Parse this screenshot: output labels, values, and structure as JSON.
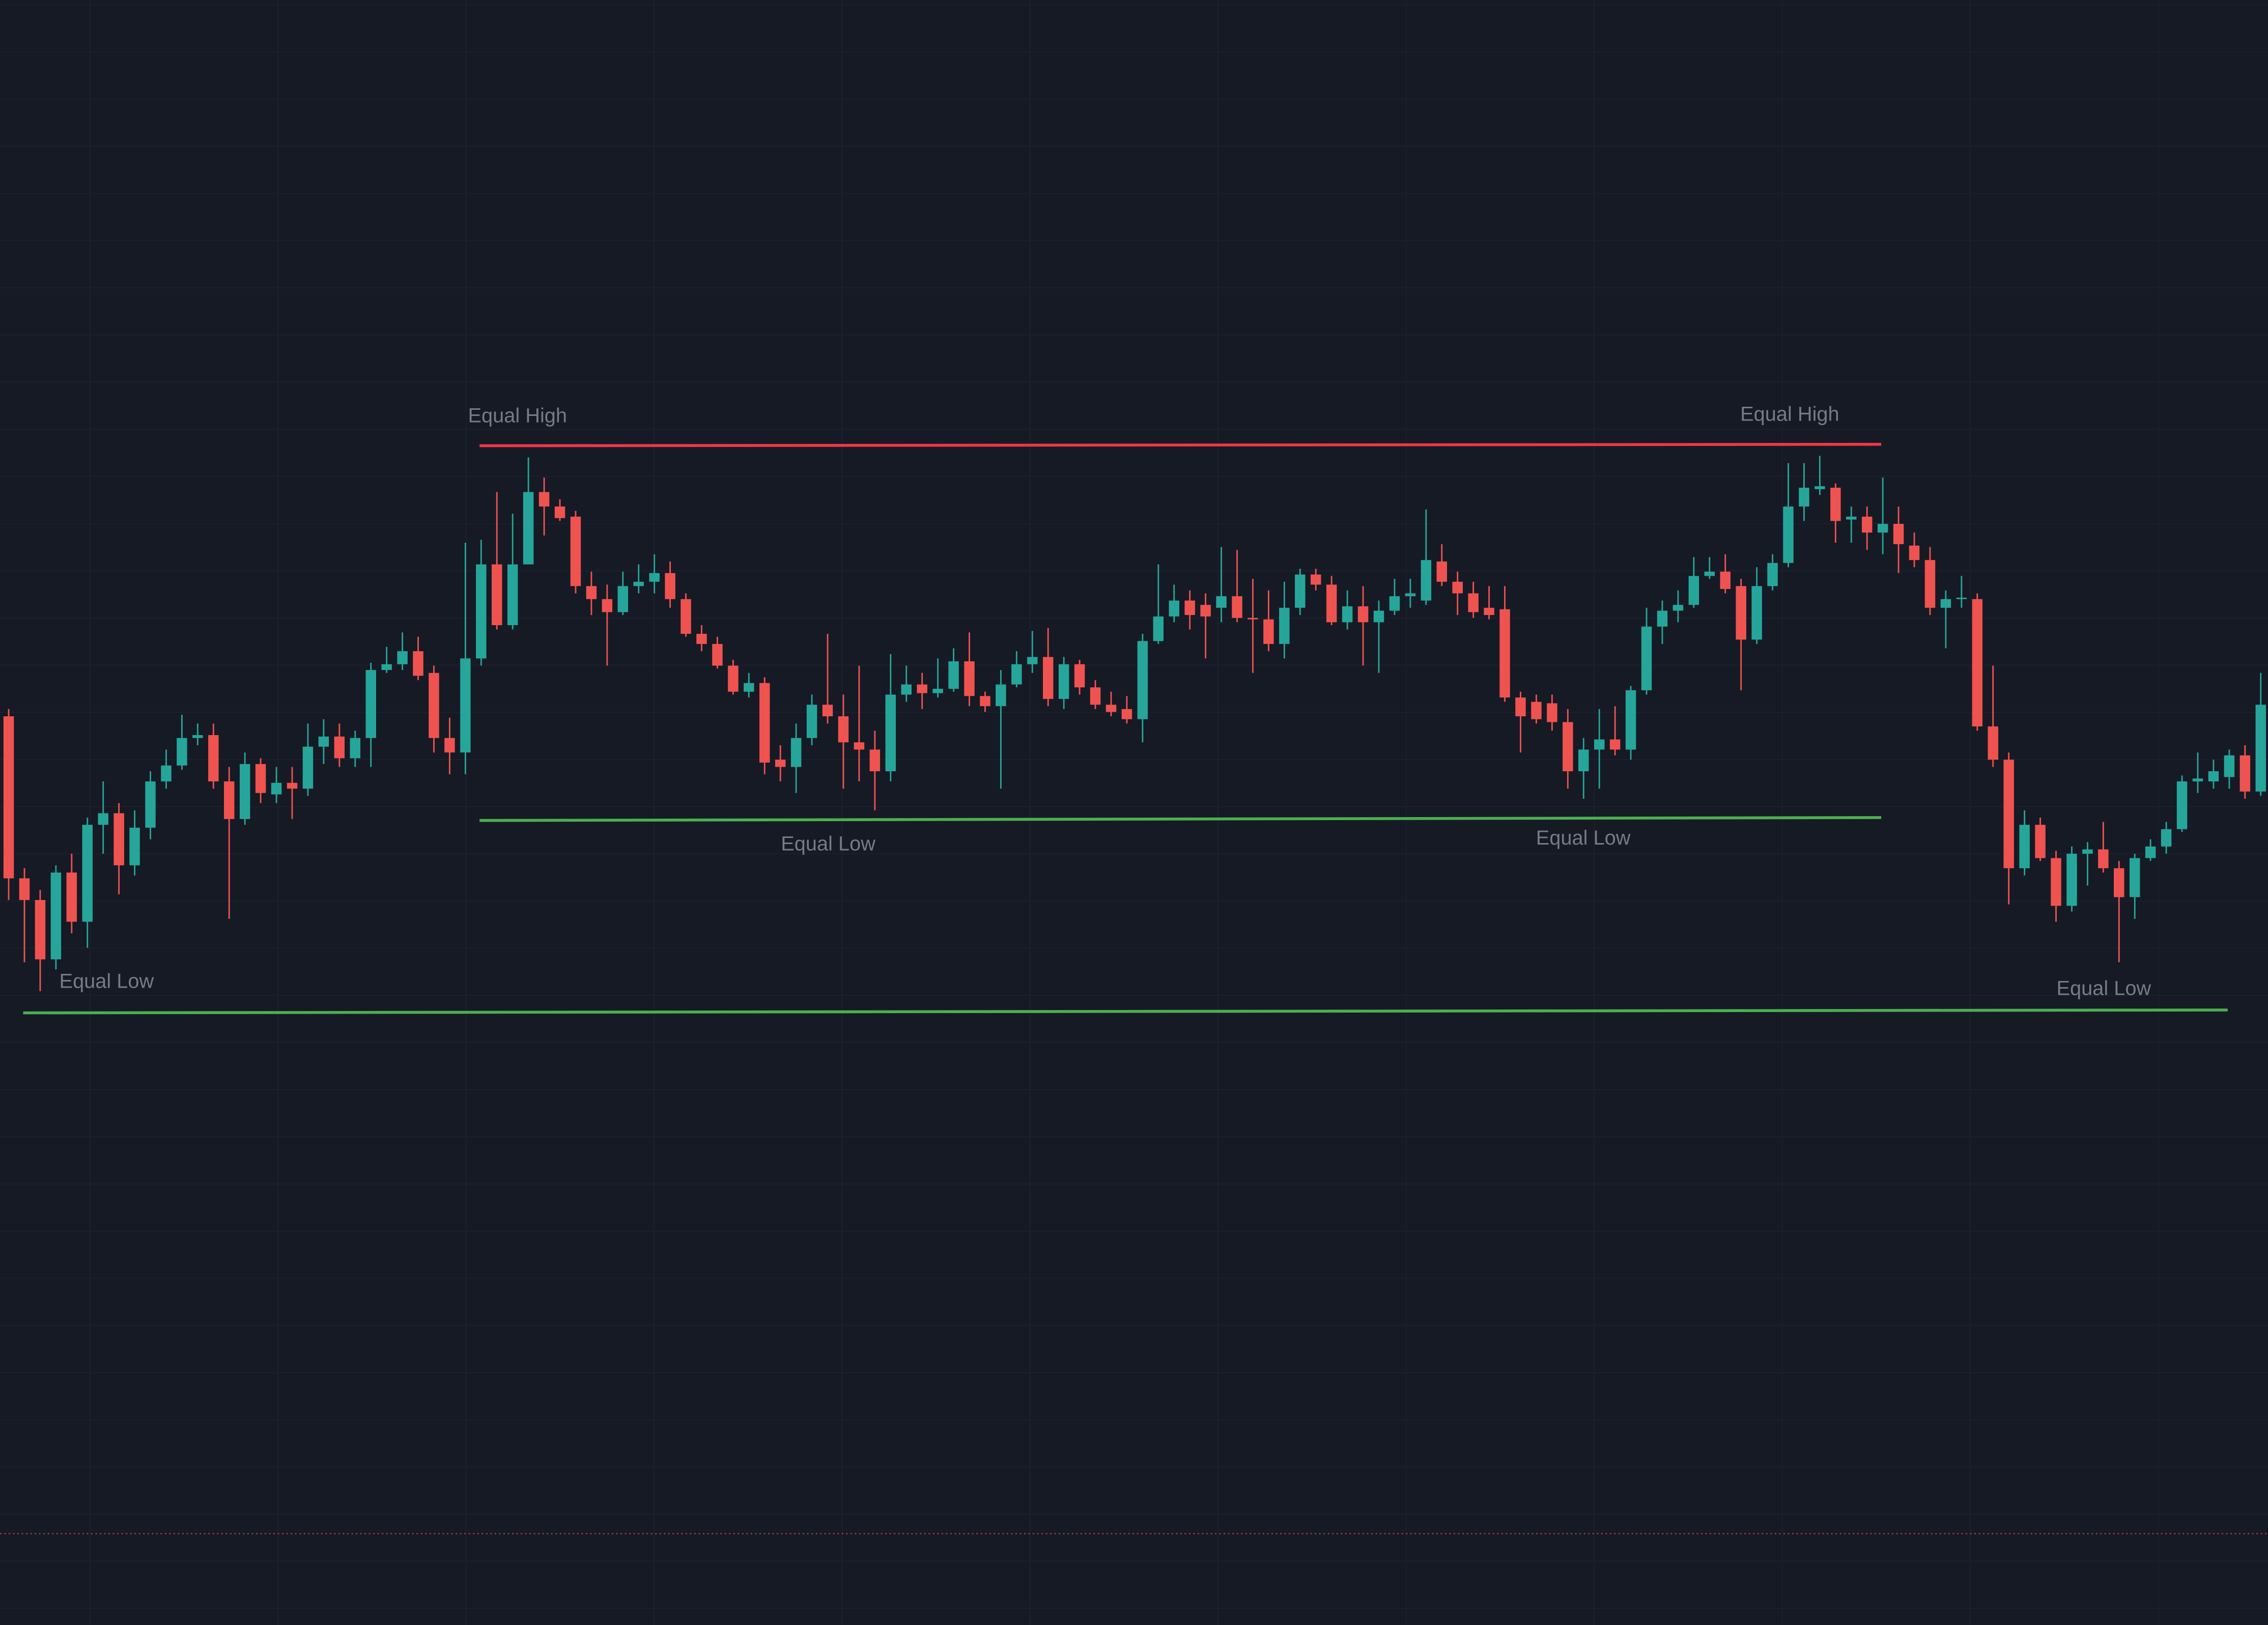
{
  "chart_data": {
    "type": "candlestick",
    "up_color": "#26a69a",
    "down_color": "#ef5350",
    "xlim": [
      -0.551,
      143.46
    ],
    "ylim": [
      77,
      1200
    ],
    "grid": true,
    "open": [
      705,
      593,
      578,
      537,
      597,
      563,
      630,
      638,
      602,
      628,
      660,
      671,
      690,
      692,
      660,
      634,
      672,
      651,
      659,
      655,
      684,
      691,
      676,
      690,
      737,
      741,
      750,
      735,
      690,
      680,
      745,
      810,
      768,
      810,
      860,
      850,
      843,
      795,
      786,
      777,
      795,
      798,
      804,
      786,
      762,
      755,
      740,
      722,
      728,
      675,
      670,
      690,
      713,
      705,
      687,
      682,
      667,
      720,
      727,
      721,
      724,
      743,
      719,
      712,
      727,
      741,
      746,
      717,
      741,
      725,
      713,
      710,
      703,
      757,
      774,
      785,
      782,
      780,
      788,
      773,
      772,
      755,
      780,
      803,
      796,
      770,
      781,
      770,
      778,
      788,
      785,
      812,
      798,
      790,
      780,
      779,
      718,
      715,
      714,
      701,
      667,
      682,
      689,
      682,
      723,
      767,
      778,
      782,
      802,
      805,
      795,
      758,
      795,
      811,
      850,
      862,
      863,
      841,
      843,
      832,
      838,
      823,
      813,
      780,
      786,
      786,
      698,
      675,
      600,
      630,
      607,
      574,
      610,
      613,
      600,
      580,
      607,
      615,
      627,
      660,
      660,
      663,
      678,
      653
    ],
    "high": [
      710,
      600,
      585,
      602,
      610,
      635,
      660,
      645,
      640,
      667,
      682,
      706,
      700,
      700,
      670,
      680,
      676,
      670,
      670,
      700,
      703,
      700,
      695,
      742,
      753,
      763,
      760,
      740,
      704,
      825,
      827,
      860,
      845,
      884,
      870,
      855,
      847,
      805,
      796,
      805,
      810,
      817,
      812,
      790,
      768,
      760,
      744,
      735,
      732,
      685,
      700,
      720,
      762,
      720,
      740,
      695,
      748,
      740,
      735,
      745,
      752,
      763,
      722,
      737,
      750,
      764,
      766,
      746,
      744,
      730,
      722,
      719,
      762,
      810,
      796,
      792,
      790,
      822,
      820,
      800,
      792,
      798,
      807,
      807,
      802,
      792,
      795,
      785,
      800,
      800,
      848,
      824,
      805,
      798,
      795,
      795,
      722,
      720,
      720,
      710,
      690,
      710,
      712,
      726,
      780,
      785,
      792,
      815,
      815,
      817,
      800,
      808,
      817,
      880,
      880,
      885,
      866,
      850,
      850,
      870,
      850,
      832,
      822,
      792,
      802,
      790,
      740,
      680,
      640,
      635,
      612,
      615,
      618,
      632,
      605,
      610,
      620,
      632,
      664,
      680,
      675,
      682,
      685,
      735
    ],
    "low": [
      578,
      535,
      515,
      530,
      555,
      545,
      610,
      582,
      595,
      620,
      655,
      668,
      685,
      655,
      565,
      630,
      645,
      645,
      634,
      650,
      672,
      670,
      670,
      670,
      735,
      737,
      730,
      680,
      665,
      665,
      740,
      765,
      765,
      810,
      830,
      840,
      790,
      775,
      740,
      775,
      790,
      790,
      780,
      760,
      750,
      738,
      720,
      718,
      665,
      660,
      652,
      685,
      700,
      655,
      660,
      640,
      660,
      715,
      710,
      718,
      722,
      712,
      708,
      655,
      725,
      735,
      712,
      710,
      720,
      710,
      705,
      700,
      687,
      755,
      770,
      765,
      745,
      770,
      770,
      735,
      750,
      745,
      775,
      792,
      768,
      765,
      740,
      735,
      775,
      780,
      782,
      795,
      775,
      773,
      772,
      715,
      680,
      700,
      695,
      655,
      648,
      655,
      678,
      675,
      720,
      755,
      770,
      780,
      800,
      790,
      723,
      755,
      792,
      808,
      840,
      858,
      825,
      825,
      820,
      817,
      804,
      808,
      775,
      752,
      780,
      695,
      670,
      575,
      595,
      605,
      563,
      570,
      588,
      597,
      535,
      565,
      605,
      610,
      625,
      652,
      655,
      655,
      648,
      650
    ],
    "close": [
      593,
      578,
      537,
      597,
      563,
      630,
      638,
      602,
      628,
      660,
      671,
      690,
      692,
      660,
      634,
      672,
      652,
      659,
      655,
      684,
      691,
      676,
      690,
      737,
      741,
      750,
      733,
      690,
      680,
      745,
      810,
      768,
      810,
      860,
      850,
      842,
      795,
      786,
      777,
      795,
      798,
      804,
      786,
      762,
      755,
      740,
      722,
      728,
      673,
      670,
      690,
      713,
      705,
      687,
      682,
      667,
      720,
      727,
      721,
      724,
      743,
      719,
      712,
      727,
      741,
      746,
      717,
      741,
      725,
      713,
      708,
      703,
      757,
      774,
      785,
      775,
      774,
      788,
      773,
      772,
      755,
      780,
      803,
      796,
      770,
      781,
      770,
      778,
      788,
      790,
      813,
      798,
      790,
      777,
      775,
      718,
      705,
      703,
      701,
      667,
      682,
      689,
      682,
      723,
      767,
      778,
      782,
      802,
      805,
      793,
      758,
      795,
      811,
      850,
      863,
      864,
      840,
      843,
      832,
      838,
      824,
      813,
      780,
      786,
      787,
      698,
      675,
      600,
      630,
      607,
      574,
      610,
      613,
      600,
      580,
      607,
      615,
      627,
      660,
      662,
      667,
      678,
      653,
      713
    ],
    "lines": [
      {
        "color": "#f23645",
        "x": [
          29.9,
          118.9
        ],
        "values": [
          892,
          893
        ],
        "labels": [
          "Equal High",
          "Equal High"
        ]
      },
      {
        "color": "#4caf50",
        "x": [
          29.9,
          118.9
        ],
        "values": [
          633,
          635
        ],
        "labels": [
          "Equal Low",
          "Equal Low"
        ]
      },
      {
        "color": "#4caf50",
        "x": [
          0.92,
          140.9
        ],
        "values": [
          500,
          502
        ],
        "labels": [
          "Equal Low",
          "Equal Low"
        ]
      }
    ],
    "price_line": {
      "value": 140,
      "color": "#ef5350"
    }
  }
}
